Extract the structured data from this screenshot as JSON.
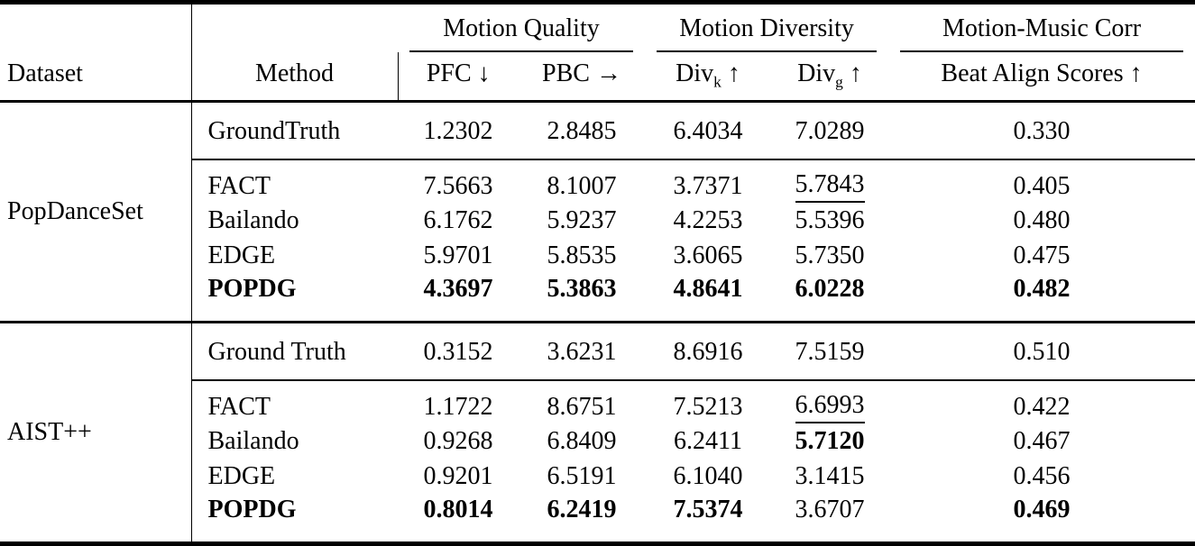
{
  "colors": {
    "text": "#000000",
    "background": "#ffffff",
    "rule": "#000000"
  },
  "header": {
    "dataset_label": "Dataset",
    "method_label": "Method",
    "groups": [
      {
        "label": "Motion Quality"
      },
      {
        "label": "Motion Diversity"
      },
      {
        "label": "Motion-Music Corr"
      }
    ],
    "sub": [
      {
        "base": "PFC",
        "sub": "",
        "arrow": "↓"
      },
      {
        "base": "PBC",
        "sub": "",
        "arrow": "→"
      },
      {
        "base": "Div",
        "sub": "k",
        "arrow": "↑"
      },
      {
        "base": "Div",
        "sub": "g",
        "arrow": "↑"
      },
      {
        "base": "Beat Align Scores",
        "sub": "",
        "arrow": "↑"
      }
    ]
  },
  "table": {
    "sections": [
      {
        "dataset": "PopDanceSet",
        "rows": [
          {
            "method": "GroundTruth",
            "gt": true,
            "values": [
              {
                "v": "1.2302"
              },
              {
                "v": "2.8485"
              },
              {
                "v": "6.4034"
              },
              {
                "v": "7.0289"
              },
              {
                "v": "0.330"
              }
            ]
          },
          {
            "method": "FACT",
            "values": [
              {
                "v": "7.5663"
              },
              {
                "v": "8.1007"
              },
              {
                "v": "3.7371"
              },
              {
                "v": "5.7843",
                "u": true
              },
              {
                "v": "0.405"
              }
            ]
          },
          {
            "method": "Bailando",
            "values": [
              {
                "v": "6.1762"
              },
              {
                "v": "5.9237"
              },
              {
                "v": "4.2253"
              },
              {
                "v": "5.5396"
              },
              {
                "v": "0.480"
              }
            ]
          },
          {
            "method": "EDGE",
            "values": [
              {
                "v": "5.9701"
              },
              {
                "v": "5.8535"
              },
              {
                "v": "3.6065"
              },
              {
                "v": "5.7350"
              },
              {
                "v": "0.475"
              }
            ]
          },
          {
            "method": "POPDG",
            "bold": true,
            "values": [
              {
                "v": "4.3697",
                "b": true
              },
              {
                "v": "5.3863",
                "b": true
              },
              {
                "v": "4.8641",
                "b": true
              },
              {
                "v": "6.0228",
                "b": true
              },
              {
                "v": "0.482",
                "b": true
              }
            ]
          }
        ]
      },
      {
        "dataset": "AIST++",
        "rows": [
          {
            "method": "Ground Truth",
            "gt": true,
            "values": [
              {
                "v": "0.3152"
              },
              {
                "v": "3.6231"
              },
              {
                "v": "8.6916"
              },
              {
                "v": "7.5159"
              },
              {
                "v": "0.510"
              }
            ]
          },
          {
            "method": "FACT",
            "values": [
              {
                "v": "1.1722"
              },
              {
                "v": "8.6751"
              },
              {
                "v": "7.5213"
              },
              {
                "v": "6.6993",
                "u": true
              },
              {
                "v": "0.422"
              }
            ]
          },
          {
            "method": "Bailando",
            "values": [
              {
                "v": "0.9268"
              },
              {
                "v": "6.8409"
              },
              {
                "v": "6.2411"
              },
              {
                "v": "5.7120",
                "b": true
              },
              {
                "v": "0.467"
              }
            ]
          },
          {
            "method": "EDGE",
            "values": [
              {
                "v": "0.9201"
              },
              {
                "v": "6.5191"
              },
              {
                "v": "6.1040"
              },
              {
                "v": "3.1415"
              },
              {
                "v": "0.456"
              }
            ]
          },
          {
            "method": "POPDG",
            "bold": true,
            "values": [
              {
                "v": "0.8014",
                "b": true
              },
              {
                "v": "6.2419",
                "b": true
              },
              {
                "v": "7.5374",
                "b": true
              },
              {
                "v": "3.6707"
              },
              {
                "v": "0.469",
                "b": true
              }
            ]
          }
        ]
      }
    ]
  }
}
